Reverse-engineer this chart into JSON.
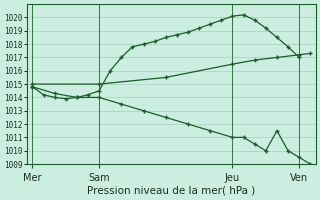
{
  "background_color": "#cceee0",
  "grid_color": "#aaccbb",
  "line_color": "#1a5c2a",
  "title": "Pression niveau de la mer( hPa )",
  "ylim": [
    1009,
    1021
  ],
  "yticks": [
    1009,
    1010,
    1011,
    1012,
    1013,
    1014,
    1015,
    1016,
    1017,
    1018,
    1019,
    1020
  ],
  "xtick_labels": [
    "Mer",
    "Sam",
    "Jeu",
    "Ven"
  ],
  "xtick_positions": [
    0,
    24,
    72,
    96
  ],
  "xlim": [
    -2,
    102
  ],
  "vline_positions": [
    0,
    24,
    72,
    96
  ],
  "line1_x": [
    0,
    4,
    8,
    12,
    16,
    20,
    24,
    28,
    32,
    36,
    40,
    44,
    48,
    52,
    56,
    60,
    64,
    68,
    72,
    76,
    80,
    84,
    88,
    92,
    96
  ],
  "line1_y": [
    1014.8,
    1014.2,
    1014.0,
    1013.9,
    1014.0,
    1014.2,
    1014.5,
    1016.0,
    1017.0,
    1017.8,
    1018.0,
    1018.2,
    1018.5,
    1018.7,
    1018.9,
    1019.2,
    1019.5,
    1019.8,
    1020.1,
    1020.2,
    1019.8,
    1019.2,
    1018.5,
    1017.8,
    1017.0
  ],
  "line2_x": [
    0,
    24,
    48,
    72,
    80,
    88,
    96,
    100
  ],
  "line2_y": [
    1015.0,
    1015.0,
    1015.5,
    1016.5,
    1016.8,
    1017.0,
    1017.2,
    1017.3
  ],
  "line3_x": [
    0,
    8,
    16,
    24,
    32,
    40,
    48,
    56,
    64,
    72,
    76,
    80,
    84,
    88,
    92,
    96,
    100
  ],
  "line3_y": [
    1014.8,
    1014.3,
    1014.0,
    1014.0,
    1013.5,
    1013.0,
    1012.5,
    1012.0,
    1011.5,
    1011.0,
    1011.0,
    1010.5,
    1010.0,
    1011.5,
    1010.0,
    1009.5,
    1009.0
  ]
}
